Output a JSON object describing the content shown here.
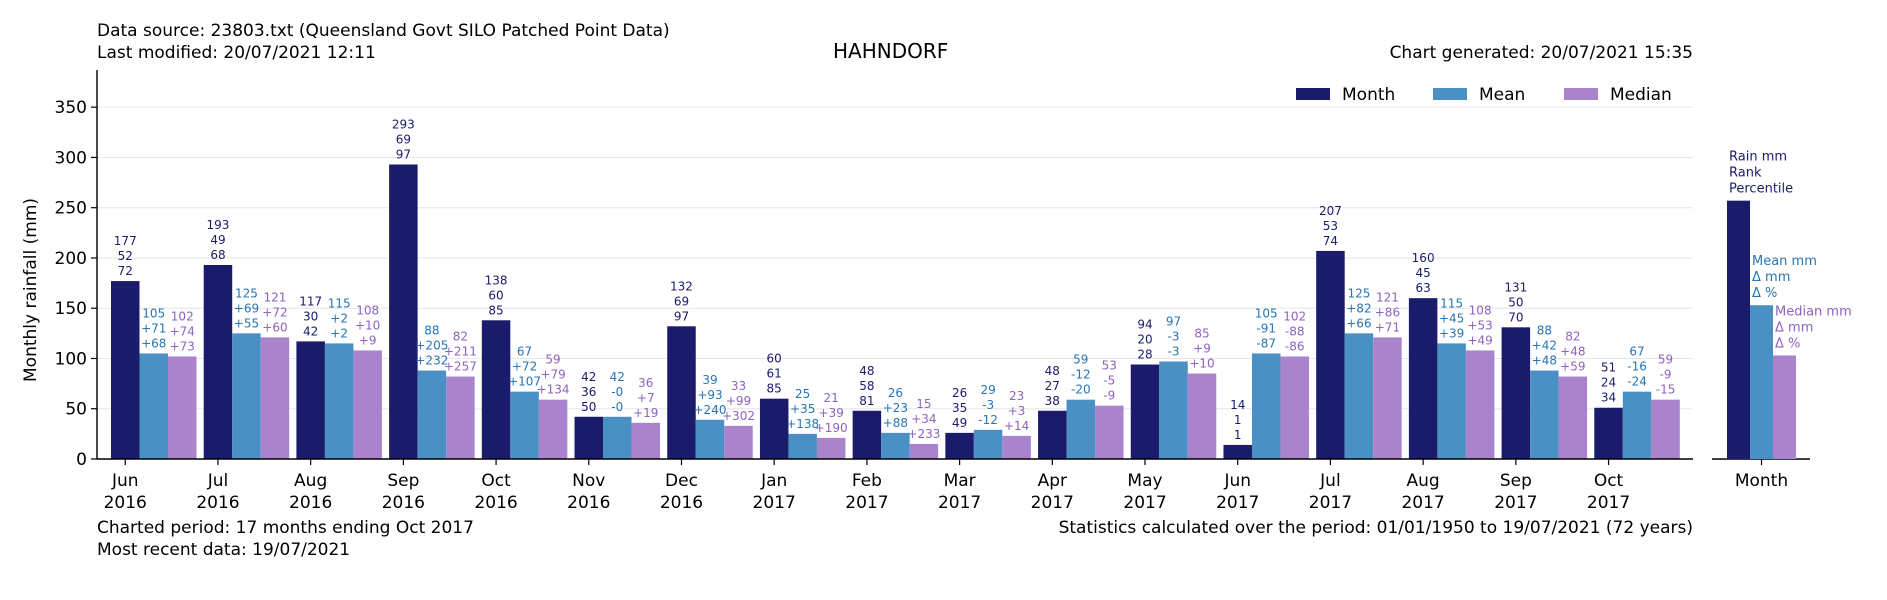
{
  "header": {
    "source_line": "Data source: 23803.txt (Queensland Govt SILO Patched Point Data)",
    "modified_line": "Last modified: 20/07/2021 12:11",
    "generated_line": "Chart generated: 20/07/2021 15:35"
  },
  "footer": {
    "period_line": "Charted period: 17 months ending Oct 2017",
    "recent_line": "Most recent data: 19/07/2021",
    "stats_line": "Statistics calculated over the period: 01/01/1950 to 19/07/2021 (72 years)"
  },
  "colors": {
    "month": "#1b1b6b",
    "mean": "#4a90c4",
    "median": "#a983cc",
    "mean_text": "#2676b4",
    "median_text": "#8e62bf"
  },
  "chart_data": {
    "type": "bar",
    "title": "HAHNDORF",
    "ylabel": "Monthly rainfall (mm)",
    "ylim": [
      0,
      385
    ],
    "yticks": [
      0,
      50,
      100,
      150,
      200,
      250,
      300,
      350
    ],
    "grid": true,
    "legend": {
      "position": "top-right",
      "entries": [
        "Month",
        "Mean",
        "Median"
      ]
    },
    "categories": [
      [
        "Jun",
        "2016"
      ],
      [
        "Jul",
        "2016"
      ],
      [
        "Aug",
        "2016"
      ],
      [
        "Sep",
        "2016"
      ],
      [
        "Oct",
        "2016"
      ],
      [
        "Nov",
        "2016"
      ],
      [
        "Dec",
        "2016"
      ],
      [
        "Jan",
        "2017"
      ],
      [
        "Feb",
        "2017"
      ],
      [
        "Mar",
        "2017"
      ],
      [
        "Apr",
        "2017"
      ],
      [
        "May",
        "2017"
      ],
      [
        "Jun",
        "2017"
      ],
      [
        "Jul",
        "2017"
      ],
      [
        "Aug",
        "2017"
      ],
      [
        "Sep",
        "2017"
      ],
      [
        "Oct",
        "2017"
      ]
    ],
    "series": [
      {
        "name": "Month",
        "values": [
          177,
          193,
          117,
          293,
          138,
          42,
          132,
          60,
          48,
          26,
          48,
          94,
          14,
          207,
          160,
          131,
          51
        ]
      },
      {
        "name": "Mean",
        "values": [
          105,
          125,
          115,
          88,
          67,
          42,
          39,
          25,
          26,
          29,
          59,
          97,
          105,
          125,
          115,
          88,
          67
        ]
      },
      {
        "name": "Median",
        "values": [
          102,
          121,
          108,
          82,
          59,
          36,
          33,
          21,
          15,
          23,
          53,
          85,
          102,
          121,
          108,
          82,
          59
        ]
      }
    ],
    "labels": {
      "month": [
        [
          "177",
          "52",
          "72"
        ],
        [
          "193",
          "49",
          "68"
        ],
        [
          "117",
          "30",
          "42"
        ],
        [
          "293",
          "69",
          "97"
        ],
        [
          "138",
          "60",
          "85"
        ],
        [
          "42",
          "36",
          "50"
        ],
        [
          "132",
          "69",
          "97"
        ],
        [
          "60",
          "61",
          "85"
        ],
        [
          "48",
          "58",
          "81"
        ],
        [
          "26",
          "35",
          "49"
        ],
        [
          "48",
          "27",
          "38"
        ],
        [
          "94",
          "20",
          "28"
        ],
        [
          "14",
          "1",
          "1"
        ],
        [
          "207",
          "53",
          "74"
        ],
        [
          "160",
          "45",
          "63"
        ],
        [
          "131",
          "50",
          "70"
        ],
        [
          "51",
          "24",
          "34"
        ]
      ],
      "mean": [
        [
          "105",
          "+71",
          "+68"
        ],
        [
          "125",
          "+69",
          "+55"
        ],
        [
          "115",
          "+2",
          "+2"
        ],
        [
          "88",
          "+205",
          "+232"
        ],
        [
          "67",
          "+72",
          "+107"
        ],
        [
          "42",
          "-0",
          "-0"
        ],
        [
          "39",
          "+93",
          "+240"
        ],
        [
          "25",
          "+35",
          "+138"
        ],
        [
          "26",
          "+23",
          "+88"
        ],
        [
          "29",
          "-3",
          "-12"
        ],
        [
          "59",
          "-12",
          "-20"
        ],
        [
          "97",
          "-3",
          "-3"
        ],
        [
          "105",
          "-91",
          "-87"
        ],
        [
          "125",
          "+82",
          "+66"
        ],
        [
          "115",
          "+45",
          "+39"
        ],
        [
          "88",
          "+42",
          "+48"
        ],
        [
          "67",
          "-16",
          "-24"
        ]
      ],
      "median": [
        [
          "102",
          "+74",
          "+73"
        ],
        [
          "121",
          "+72",
          "+60"
        ],
        [
          "108",
          "+10",
          "+9"
        ],
        [
          "82",
          "+211",
          "+257"
        ],
        [
          "59",
          "+79",
          "+134"
        ],
        [
          "36",
          "+7",
          "+19"
        ],
        [
          "33",
          "+99",
          "+302"
        ],
        [
          "21",
          "+39",
          "+190"
        ],
        [
          "15",
          "+34",
          "+233"
        ],
        [
          "23",
          "+3",
          "+14"
        ],
        [
          "53",
          "-5",
          "-9"
        ],
        [
          "85",
          "+9",
          "+10"
        ],
        [
          "102",
          "-88",
          "-86"
        ],
        [
          "121",
          "+86",
          "+71"
        ],
        [
          "108",
          "+53",
          "+49"
        ],
        [
          "82",
          "+48",
          "+59"
        ],
        [
          "59",
          "-9",
          "-15"
        ]
      ]
    },
    "key_panel": {
      "xlabel": "Month",
      "values": [
        257,
        153,
        103
      ],
      "month_lines": [
        "Rain mm",
        "Rank",
        "Percentile"
      ],
      "mean_lines": [
        "Mean mm",
        "Δ mm",
        "Δ %"
      ],
      "median_lines": [
        "Median mm",
        "Δ mm",
        "Δ %"
      ]
    }
  }
}
